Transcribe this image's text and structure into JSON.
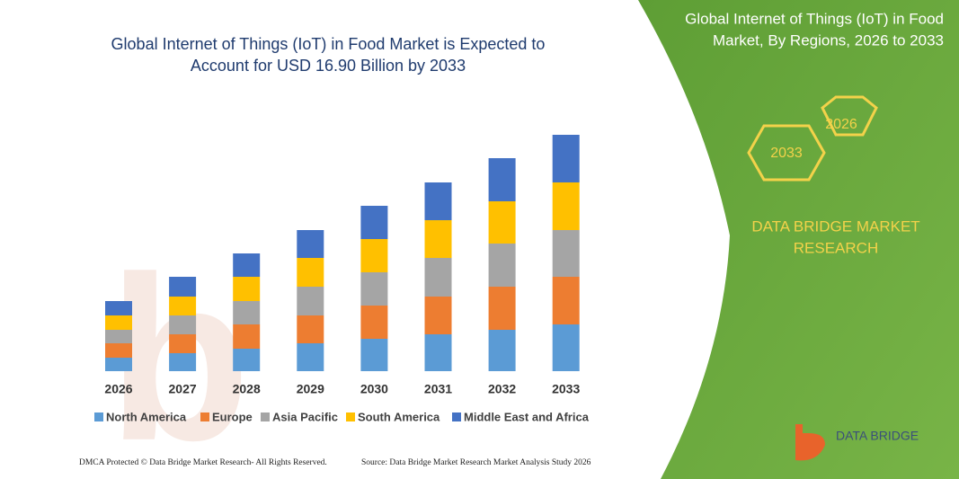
{
  "chart_data": {
    "type": "stacked-bar",
    "title": [
      "Global Internet of Things (IoT) in Food Market is Expected to",
      "Account for USD 16.90 Billion by 2033"
    ],
    "categories": [
      "2026",
      "2027",
      "2028",
      "2029",
      "2030",
      "2031",
      "2032",
      "2033"
    ],
    "ylim": [
      0,
      270
    ],
    "series": [
      {
        "name": "North America",
        "color": "#5b9bd5",
        "values": [
          15,
          20,
          25,
          31,
          36,
          41,
          46,
          52
        ]
      },
      {
        "name": "Europe",
        "color": "#ed7d31",
        "values": [
          16,
          21,
          27,
          31,
          37,
          42,
          48,
          53
        ]
      },
      {
        "name": "Asia Pacific",
        "color": "#a5a5a5",
        "values": [
          15,
          21,
          26,
          32,
          37,
          43,
          48,
          52
        ]
      },
      {
        "name": "South America",
        "color": "#ffc000",
        "values": [
          16,
          21,
          27,
          32,
          37,
          42,
          47,
          53
        ]
      },
      {
        "name": "Middle East and Africa",
        "color": "#4472c4",
        "values": [
          16,
          22,
          26,
          31,
          37,
          42,
          48,
          53
        ]
      }
    ]
  },
  "panel": {
    "title": [
      "Global Internet of Things (IoT) in Food",
      "Market, By Regions, 2026 to 2033"
    ],
    "hexagons": [
      "2026",
      "2033"
    ],
    "brand": [
      "DATA BRIDGE MARKET",
      "RESEARCH"
    ]
  },
  "logo": "DATA BRIDGE",
  "footer": [
    "DMCA Protected © Data Bridge Market Research- All Rights Reserved.",
    "Source: Data Bridge Market Research  Market Analysis Study 2026"
  ]
}
